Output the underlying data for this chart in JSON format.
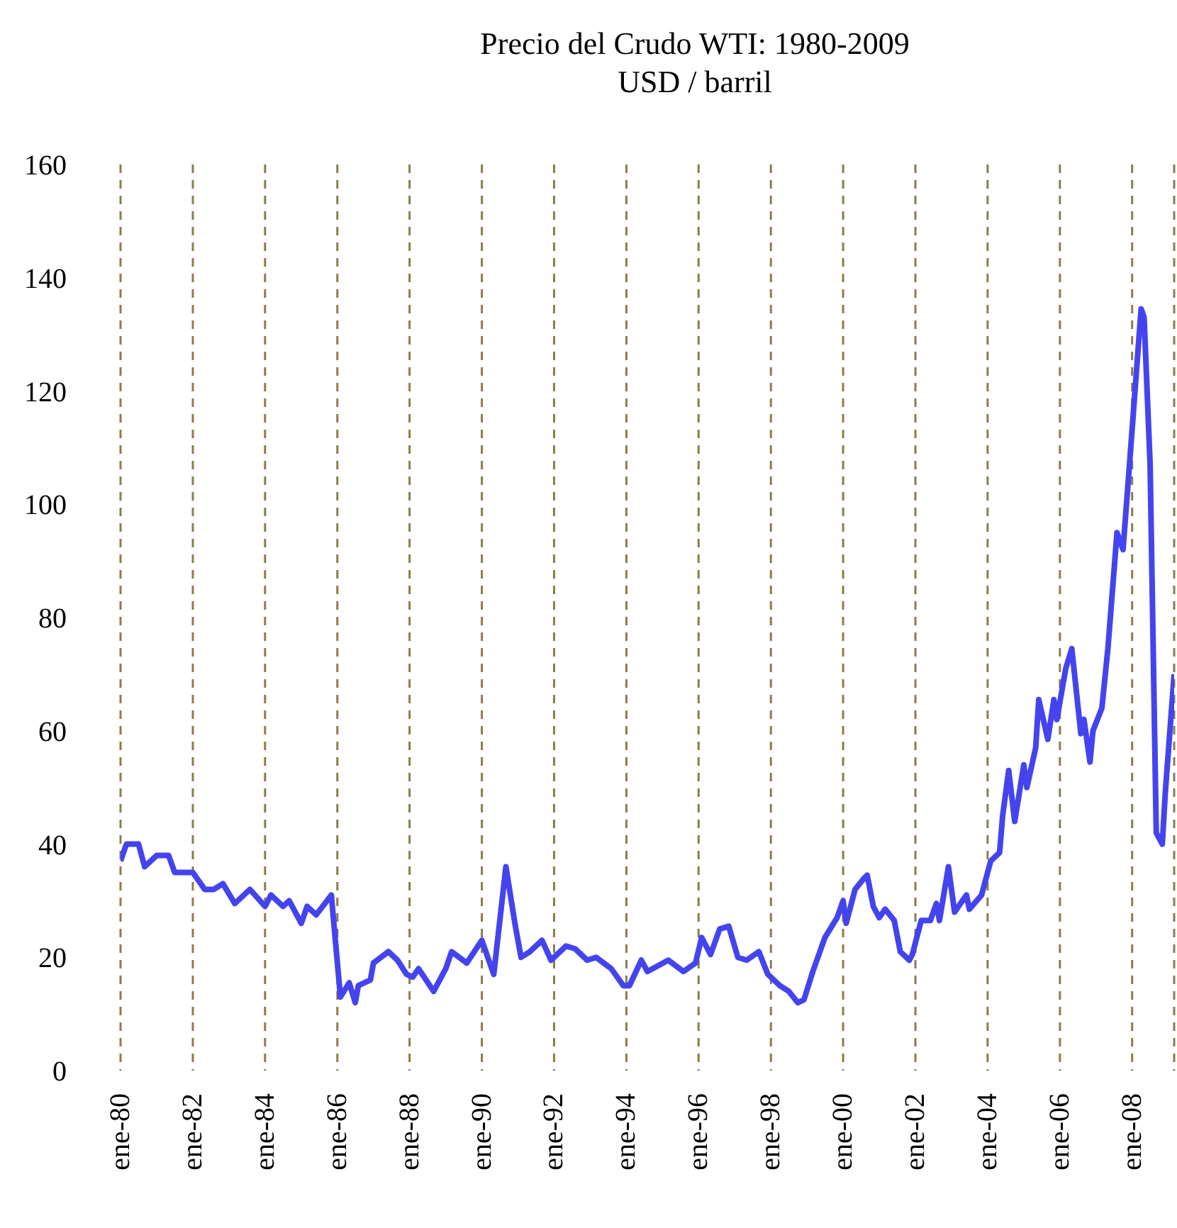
{
  "chart_data": {
    "type": "line",
    "title": "Precio del Crudo WTI: 1980-2009",
    "subtitle": "USD / barril",
    "x": [
      "1980-01",
      "1980-03",
      "1980-07",
      "1980-09",
      "1981-01",
      "1981-05",
      "1981-07",
      "1982-01",
      "1982-05",
      "1982-08",
      "1982-11",
      "1983-03",
      "1983-08",
      "1984-01",
      "1984-03",
      "1984-07",
      "1984-09",
      "1985-01",
      "1985-03",
      "1985-06",
      "1985-11",
      "1986-02",
      "1986-05",
      "1986-07",
      "1986-08",
      "1986-12",
      "1987-01",
      "1987-06",
      "1987-09",
      "1987-12",
      "1988-02",
      "1988-04",
      "1988-09",
      "1989-01",
      "1989-03",
      "1989-08",
      "1990-01",
      "1990-05",
      "1990-09",
      "1990-12",
      "1991-02",
      "1991-05",
      "1991-09",
      "1991-12",
      "1992-05",
      "1992-08",
      "1992-12",
      "1993-03",
      "1993-08",
      "1993-12",
      "1994-02",
      "1994-06",
      "1994-08",
      "1995-03",
      "1995-08",
      "1995-12",
      "1996-02",
      "1996-05",
      "1996-08",
      "1996-11",
      "1997-02",
      "1997-05",
      "1997-09",
      "1997-12",
      "1998-04",
      "1998-07",
      "1998-10",
      "1998-12",
      "1999-03",
      "1999-07",
      "1999-11",
      "2000-01",
      "2000-02",
      "2000-05",
      "2000-08",
      "2000-09",
      "2000-11",
      "2001-01",
      "2001-03",
      "2001-06",
      "2001-08",
      "2001-11",
      "2001-12",
      "2002-03",
      "2002-06",
      "2002-08",
      "2002-09",
      "2002-12",
      "2003-02",
      "2003-06",
      "2003-07",
      "2003-11",
      "2004-02",
      "2004-05",
      "2004-06",
      "2004-08",
      "2004-10",
      "2005-01",
      "2005-02",
      "2005-05",
      "2005-06",
      "2005-09",
      "2005-11",
      "2005-12",
      "2006-03",
      "2006-05",
      "2006-08",
      "2006-09",
      "2006-11",
      "2006-12",
      "2007-03",
      "2007-05",
      "2007-08",
      "2007-10",
      "2007-12",
      "2008-04",
      "2008-05",
      "2008-07",
      "2008-09",
      "2008-11",
      "2008-12",
      "2009-03"
    ],
    "series": [
      {
        "color": "#4444ee",
        "values": [
          37,
          40,
          40,
          36,
          38,
          38,
          35,
          35,
          32,
          32,
          33,
          29.5,
          32,
          29,
          31,
          29,
          30,
          26,
          29,
          27.5,
          31,
          13,
          15.5,
          12,
          15,
          16,
          19,
          21,
          19.5,
          17,
          16.5,
          18,
          14,
          18,
          21,
          19,
          23,
          17,
          36,
          26,
          20,
          21,
          23,
          19.5,
          22,
          21.5,
          19.5,
          20,
          18,
          15,
          15,
          19.5,
          17.5,
          19.5,
          17.5,
          19,
          23.5,
          20.5,
          25,
          25.5,
          20,
          19.5,
          21,
          17,
          15,
          14,
          12,
          12.5,
          17.5,
          23.5,
          27,
          30,
          26,
          32,
          34,
          34.5,
          29,
          27,
          28.5,
          26.5,
          21,
          19.5,
          20.5,
          26.5,
          26.5,
          29.5,
          26.5,
          36,
          28,
          31,
          28.5,
          31,
          37,
          38.5,
          45,
          53,
          44,
          54,
          50,
          57,
          65.5,
          58.5,
          65.5,
          62,
          71,
          74.5,
          59.5,
          62,
          54.5,
          60,
          64,
          74.5,
          95,
          92,
          106,
          134.5,
          133,
          107,
          42,
          40,
          49,
          70
        ]
      }
    ],
    "xlim": [
      "1980-01",
      "2009-03"
    ],
    "xticks": [
      {
        "value": "1980-01",
        "label": "ene-80"
      },
      {
        "value": "1982-01",
        "label": "ene-82"
      },
      {
        "value": "1984-01",
        "label": "ene-84"
      },
      {
        "value": "1986-01",
        "label": "ene-86"
      },
      {
        "value": "1988-01",
        "label": "ene-88"
      },
      {
        "value": "1990-01",
        "label": "ene-90"
      },
      {
        "value": "1992-01",
        "label": "ene-92"
      },
      {
        "value": "1994-01",
        "label": "ene-94"
      },
      {
        "value": "1996-01",
        "label": "ene-96"
      },
      {
        "value": "1998-01",
        "label": "ene-98"
      },
      {
        "value": "2000-01",
        "label": "ene-00"
      },
      {
        "value": "2002-01",
        "label": "ene-02"
      },
      {
        "value": "2004-01",
        "label": "ene-04"
      },
      {
        "value": "2006-01",
        "label": "ene-06"
      },
      {
        "value": "2008-01",
        "label": "ene-08"
      }
    ],
    "ylim": [
      0,
      160
    ],
    "yticks": [
      0,
      20,
      40,
      60,
      80,
      100,
      120,
      140,
      160
    ],
    "grid": "x",
    "legend": false
  }
}
